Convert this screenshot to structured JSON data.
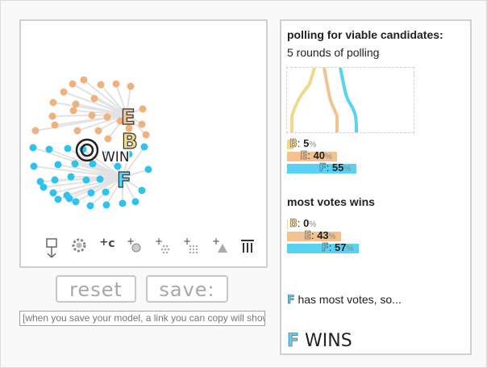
{
  "colors": {
    "B": "#f0d98a",
    "E": "#f2c391",
    "F": "#59d1f2",
    "E_voter": "#f0b27c",
    "F_voter": "#2ec2ee",
    "link": "#e2e2e2"
  },
  "sim": {
    "candidates": [
      "E",
      "B",
      "F"
    ],
    "win_label": "WIN",
    "toolbar": [
      {
        "name": "pin-icon",
        "glyph": ""
      },
      {
        "name": "gear-icon",
        "glyph": ""
      },
      {
        "name": "add-candidate-icon",
        "glyph": "+c"
      },
      {
        "name": "add-voter-icon",
        "glyph": "+"
      },
      {
        "name": "add-voter-group-icon",
        "glyph": "+"
      },
      {
        "name": "add-voter-crowd-icon",
        "glyph": "+"
      },
      {
        "name": "add-triangle-icon",
        "glyph": "+"
      },
      {
        "name": "trash-icon",
        "glyph": ""
      }
    ]
  },
  "buttons": {
    "reset": "reset",
    "save": "save:"
  },
  "link_field": {
    "value": "[when you save your model, a link you can copy will show"
  },
  "results": {
    "section1": {
      "title": "polling for viable candidates:",
      "subtitle": "5 rounds of polling",
      "bars": [
        {
          "cand": "B",
          "percent": 5
        },
        {
          "cand": "E",
          "percent": 40
        },
        {
          "cand": "F",
          "percent": 55
        }
      ]
    },
    "section2": {
      "title": "most votes wins",
      "bars": [
        {
          "cand": "B",
          "percent": 0
        },
        {
          "cand": "E",
          "percent": 43
        },
        {
          "cand": "F",
          "percent": 57
        }
      ]
    },
    "most_votes_text": "has most votes, so...",
    "most_votes_cand": "F",
    "winner_cand": "F",
    "winner_text": "WINS"
  }
}
